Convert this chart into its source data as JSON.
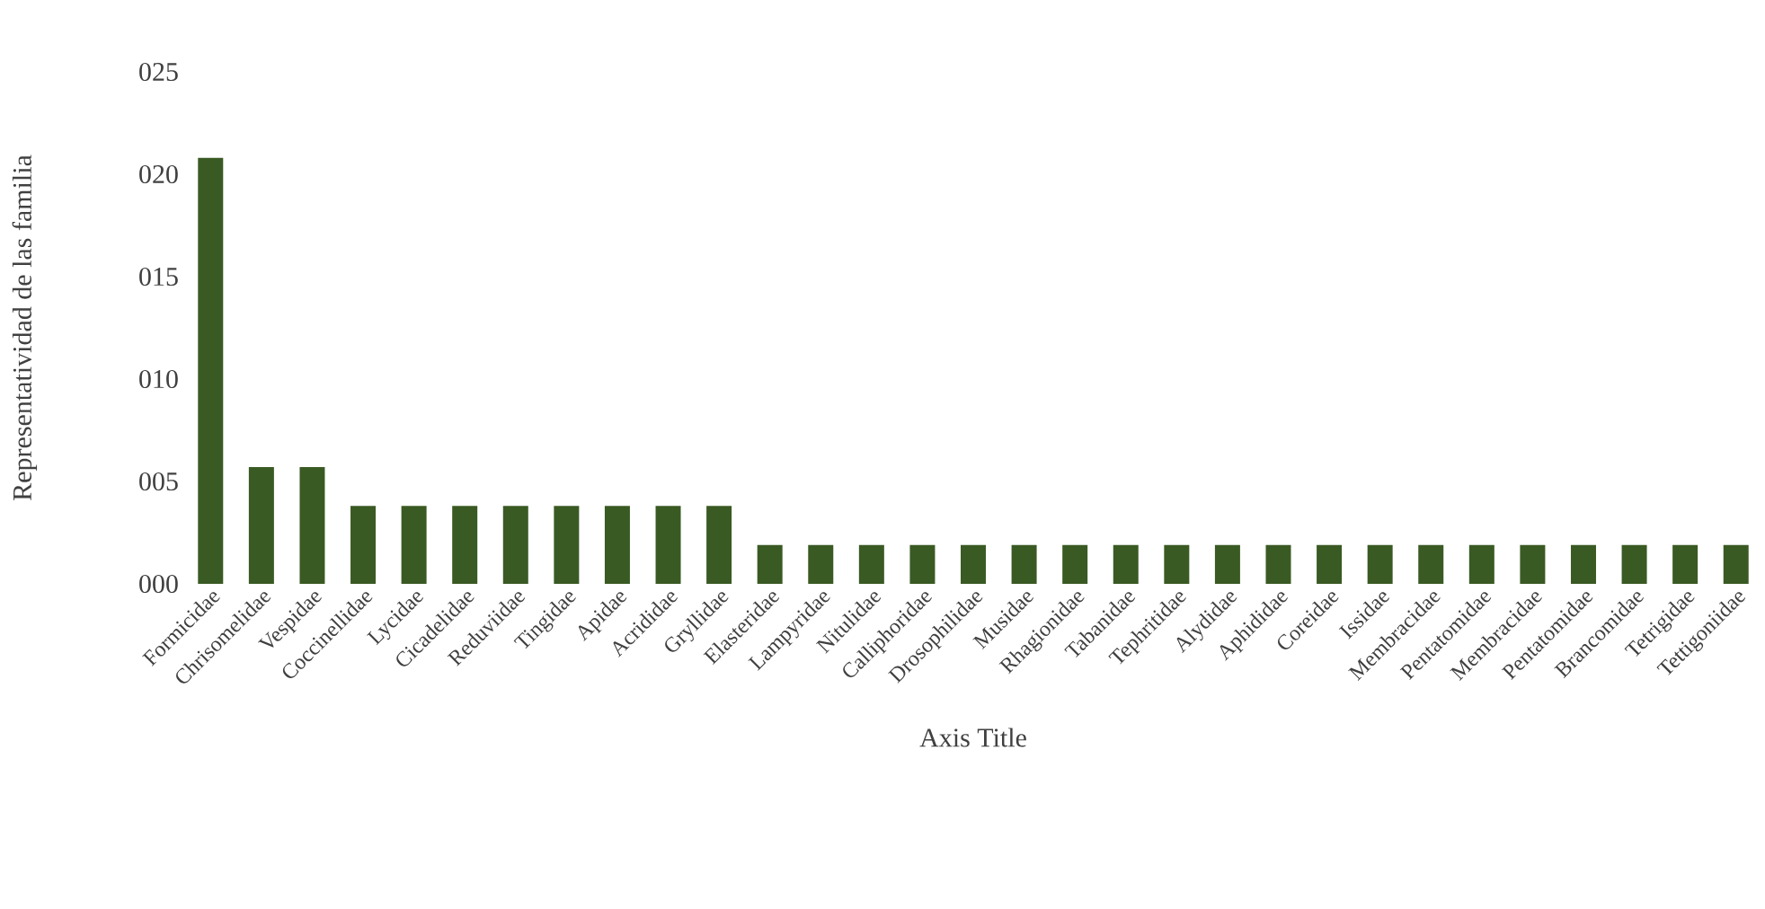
{
  "chart_data": {
    "type": "bar",
    "xlabel": "Axis Title",
    "ylabel": "Representatividad de las familia",
    "categories": [
      "Formicidae",
      "Chrisomelidae",
      "Vespidae",
      "Coccinellidae",
      "Lycidae",
      "Cicadelidae",
      "Reduviidae",
      "Tingidae",
      "Apidae",
      "Acrididae",
      "Gryllidae",
      "Elasteridae",
      "Lampyridae",
      "Nitulidae",
      "Calliphoridae",
      "Drosophilidae",
      "Musidae",
      "Rhagionidae",
      "Tabanidae",
      "Tephritidae",
      "Alydidae",
      "Aphididae",
      "Coreidae",
      "Issidae",
      "Membracidae",
      "Pentatomidae",
      "Membracidae",
      "Pentatomidae",
      "Brancomidae",
      "Tetrigidae",
      "Tettigoniidae"
    ],
    "values": [
      20.8,
      5.7,
      5.7,
      3.8,
      3.8,
      3.8,
      3.8,
      3.8,
      3.8,
      3.8,
      3.8,
      1.9,
      1.9,
      1.9,
      1.9,
      1.9,
      1.9,
      1.9,
      1.9,
      1.9,
      1.9,
      1.9,
      1.9,
      1.9,
      1.9,
      1.9,
      1.9,
      1.9,
      1.9,
      1.9,
      1.9
    ],
    "color": "#3a5a23",
    "ylim": [
      0,
      25
    ],
    "yticks": [
      {
        "value": 0,
        "label": "000"
      },
      {
        "value": 5,
        "label": "005"
      },
      {
        "value": 10,
        "label": "010"
      },
      {
        "value": 15,
        "label": "015"
      },
      {
        "value": 20,
        "label": "020"
      },
      {
        "value": 25,
        "label": "025"
      }
    ],
    "grid": false
  }
}
